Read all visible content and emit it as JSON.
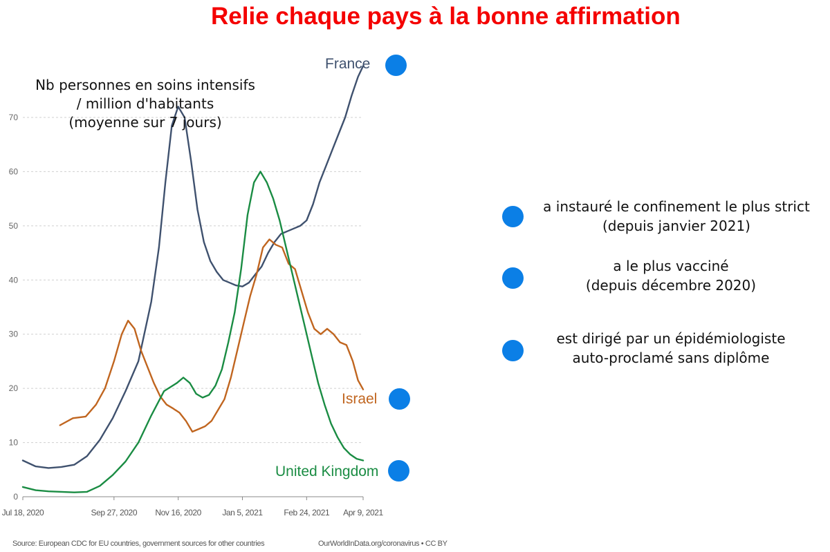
{
  "header": {
    "title": "Relie chaque pays à la bonne affirmation"
  },
  "chart_note": [
    "Nb personnes en soins intensifs",
    "/ million d'habitants",
    "(moyenne sur 7 jours)"
  ],
  "footer": {
    "source": "Source: European CDC for EU countries, government sources for other countries",
    "credit": "OurWorldInData.org/coronavirus • CC BY"
  },
  "statements": [
    {
      "lines": [
        "a instauré le confinement le plus strict",
        "(depuis janvier 2021)"
      ]
    },
    {
      "lines": [
        "a le plus vacciné",
        "(depuis décembre 2020)"
      ]
    },
    {
      "lines": [
        "est dirigé par un épidémiologiste",
        "auto-proclamé sans diplôme"
      ]
    }
  ],
  "colors": {
    "france": "#3f516e",
    "israel": "#c0651f",
    "uk": "#1a8c43",
    "title": "#f40000",
    "dot": "#0b7fe6",
    "grid": "#cfcfcf"
  },
  "chart_data": {
    "type": "line",
    "ylim": [
      0,
      75
    ],
    "yticks": [
      0,
      10,
      20,
      30,
      40,
      50,
      60,
      70
    ],
    "xlim": [
      "2020-07-18",
      "2021-04-09"
    ],
    "xticks": [
      "Jul 18, 2020",
      "Sep 27, 2020",
      "Nov 16, 2020",
      "Jan 5, 2021",
      "Feb 24, 2021",
      "Apr 9, 2021"
    ],
    "grid": true,
    "series": [
      {
        "name": "France",
        "color_key": "france",
        "points": [
          [
            "2020-07-18",
            6.7
          ],
          [
            "2020-07-28",
            5.6
          ],
          [
            "2020-08-07",
            5.3
          ],
          [
            "2020-08-17",
            5.5
          ],
          [
            "2020-08-27",
            5.9
          ],
          [
            "2020-09-06",
            7.5
          ],
          [
            "2020-09-16",
            10.5
          ],
          [
            "2020-09-26",
            14.5
          ],
          [
            "2020-10-06",
            19.5
          ],
          [
            "2020-10-16",
            25.0
          ],
          [
            "2020-10-26",
            36.0
          ],
          [
            "2020-11-01",
            46.0
          ],
          [
            "2020-11-06",
            58.0
          ],
          [
            "2020-11-11",
            68.5
          ],
          [
            "2020-11-16",
            72.0
          ],
          [
            "2020-11-21",
            70.0
          ],
          [
            "2020-11-26",
            62.0
          ],
          [
            "2020-12-01",
            53.0
          ],
          [
            "2020-12-06",
            47.0
          ],
          [
            "2020-12-11",
            43.5
          ],
          [
            "2020-12-16",
            41.5
          ],
          [
            "2020-12-21",
            40.0
          ],
          [
            "2020-12-26",
            39.5
          ],
          [
            "2020-12-31",
            39.0
          ],
          [
            "2021-01-05",
            38.8
          ],
          [
            "2021-01-10",
            39.5
          ],
          [
            "2021-01-15",
            41.0
          ],
          [
            "2021-01-20",
            42.5
          ],
          [
            "2021-01-25",
            45.0
          ],
          [
            "2021-01-30",
            47.0
          ],
          [
            "2021-02-04",
            48.5
          ],
          [
            "2021-02-09",
            49.0
          ],
          [
            "2021-02-14",
            49.5
          ],
          [
            "2021-02-19",
            50.0
          ],
          [
            "2021-02-24",
            51.0
          ],
          [
            "2021-03-01",
            54.0
          ],
          [
            "2021-03-06",
            58.0
          ],
          [
            "2021-03-11",
            61.0
          ],
          [
            "2021-03-16",
            64.0
          ],
          [
            "2021-03-21",
            67.0
          ],
          [
            "2021-03-26",
            70.0
          ],
          [
            "2021-03-31",
            74.0
          ],
          [
            "2021-04-05",
            77.5
          ],
          [
            "2021-04-09",
            79.5
          ]
        ]
      },
      {
        "name": "Israel",
        "color_key": "israel",
        "points": [
          [
            "2020-08-16",
            13.2
          ],
          [
            "2020-08-26",
            14.5
          ],
          [
            "2020-09-05",
            14.8
          ],
          [
            "2020-09-13",
            17.0
          ],
          [
            "2020-09-20",
            20.0
          ],
          [
            "2020-09-27",
            25.0
          ],
          [
            "2020-10-03",
            30.0
          ],
          [
            "2020-10-08",
            32.5
          ],
          [
            "2020-10-13",
            31.0
          ],
          [
            "2020-10-18",
            27.0
          ],
          [
            "2020-10-23",
            24.0
          ],
          [
            "2020-10-28",
            21.0
          ],
          [
            "2020-11-02",
            18.5
          ],
          [
            "2020-11-07",
            17.0
          ],
          [
            "2020-11-12",
            16.3
          ],
          [
            "2020-11-17",
            15.5
          ],
          [
            "2020-11-22",
            14.0
          ],
          [
            "2020-11-27",
            12.0
          ],
          [
            "2020-12-02",
            12.5
          ],
          [
            "2020-12-07",
            13.0
          ],
          [
            "2020-12-12",
            14.0
          ],
          [
            "2020-12-17",
            16.0
          ],
          [
            "2020-12-22",
            18.0
          ],
          [
            "2020-12-27",
            22.0
          ],
          [
            "2021-01-01",
            27.0
          ],
          [
            "2021-01-06",
            32.0
          ],
          [
            "2021-01-11",
            37.0
          ],
          [
            "2021-01-16",
            41.0
          ],
          [
            "2021-01-21",
            46.0
          ],
          [
            "2021-01-26",
            47.5
          ],
          [
            "2021-01-31",
            46.5
          ],
          [
            "2021-02-05",
            46.0
          ],
          [
            "2021-02-10",
            43.0
          ],
          [
            "2021-02-15",
            42.0
          ],
          [
            "2021-02-20",
            38.0
          ],
          [
            "2021-02-25",
            34.0
          ],
          [
            "2021-03-02",
            31.0
          ],
          [
            "2021-03-07",
            30.0
          ],
          [
            "2021-03-12",
            31.0
          ],
          [
            "2021-03-17",
            30.0
          ],
          [
            "2021-03-22",
            28.5
          ],
          [
            "2021-03-27",
            28.0
          ],
          [
            "2021-04-01",
            25.0
          ],
          [
            "2021-04-05",
            21.5
          ],
          [
            "2021-04-09",
            19.8
          ]
        ]
      },
      {
        "name": "United Kingdom",
        "color_key": "uk",
        "points": [
          [
            "2020-07-18",
            1.8
          ],
          [
            "2020-07-28",
            1.2
          ],
          [
            "2020-08-07",
            1.0
          ],
          [
            "2020-08-17",
            0.9
          ],
          [
            "2020-08-27",
            0.8
          ],
          [
            "2020-09-06",
            0.9
          ],
          [
            "2020-09-16",
            2.0
          ],
          [
            "2020-09-26",
            4.0
          ],
          [
            "2020-10-06",
            6.5
          ],
          [
            "2020-10-16",
            10.0
          ],
          [
            "2020-10-26",
            15.0
          ],
          [
            "2020-11-05",
            19.5
          ],
          [
            "2020-11-15",
            21.0
          ],
          [
            "2020-11-20",
            22.0
          ],
          [
            "2020-11-25",
            21.0
          ],
          [
            "2020-11-30",
            19.0
          ],
          [
            "2020-12-05",
            18.3
          ],
          [
            "2020-12-10",
            18.8
          ],
          [
            "2020-12-15",
            20.5
          ],
          [
            "2020-12-20",
            23.5
          ],
          [
            "2020-12-25",
            28.5
          ],
          [
            "2020-12-30",
            34.0
          ],
          [
            "2021-01-04",
            42.0
          ],
          [
            "2021-01-09",
            52.0
          ],
          [
            "2021-01-14",
            58.0
          ],
          [
            "2021-01-19",
            60.0
          ],
          [
            "2021-01-24",
            58.0
          ],
          [
            "2021-01-29",
            55.0
          ],
          [
            "2021-02-03",
            51.0
          ],
          [
            "2021-02-08",
            46.0
          ],
          [
            "2021-02-13",
            41.0
          ],
          [
            "2021-02-18",
            36.0
          ],
          [
            "2021-02-23",
            31.0
          ],
          [
            "2021-02-28",
            26.0
          ],
          [
            "2021-03-05",
            21.0
          ],
          [
            "2021-03-10",
            17.0
          ],
          [
            "2021-03-15",
            13.5
          ],
          [
            "2021-03-20",
            11.0
          ],
          [
            "2021-03-25",
            9.0
          ],
          [
            "2021-03-30",
            7.8
          ],
          [
            "2021-04-04",
            7.0
          ],
          [
            "2021-04-09",
            6.7
          ]
        ]
      }
    ]
  }
}
